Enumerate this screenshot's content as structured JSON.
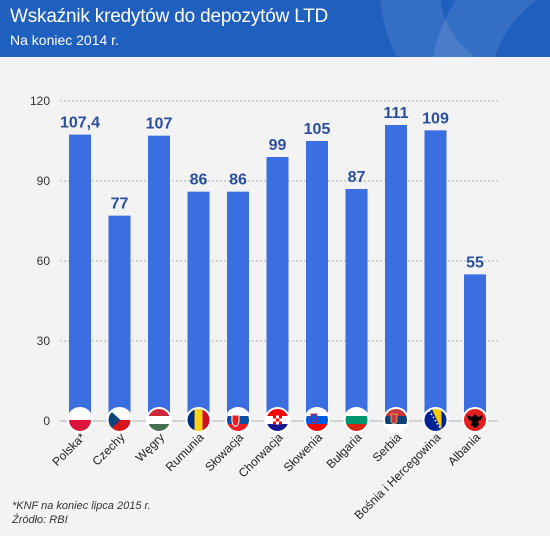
{
  "header": {
    "title": "Wskaźnik kredytów do depozytów LTD",
    "subtitle": "Na koniec 2014 r."
  },
  "chart_data": {
    "type": "bar",
    "categories": [
      "Polska*",
      "Czechy",
      "Węgry",
      "Rumunia",
      "Słowacja",
      "Chorwacja",
      "Słowenia",
      "Bułgaria",
      "Serbia",
      "Bośnia i Hercegowina",
      "Albania"
    ],
    "values": [
      107.4,
      77,
      107,
      86,
      86,
      99,
      105,
      87,
      111,
      109,
      55
    ],
    "value_labels": [
      "107,4",
      "77",
      "107",
      "86",
      "86",
      "99",
      "105",
      "87",
      "111",
      "109",
      "55"
    ],
    "ylim": [
      0,
      120
    ],
    "yticks": [
      0,
      30,
      60,
      90,
      120
    ],
    "grid": true,
    "colors": {
      "bar": "#3b6ee0",
      "value_label": "#2a4f9e",
      "grid": "#b0b0b0"
    },
    "category_icons": [
      "flag-poland-icon",
      "flag-czechia-icon",
      "flag-hungary-icon",
      "flag-romania-icon",
      "flag-slovakia-icon",
      "flag-croatia-icon",
      "flag-slovenia-icon",
      "flag-bulgaria-icon",
      "flag-serbia-icon",
      "flag-bosnia-icon",
      "flag-albania-icon"
    ]
  },
  "footnote": {
    "note": "*KNF na koniec lipca 2015 r.",
    "source": "Źródło: RBI"
  }
}
